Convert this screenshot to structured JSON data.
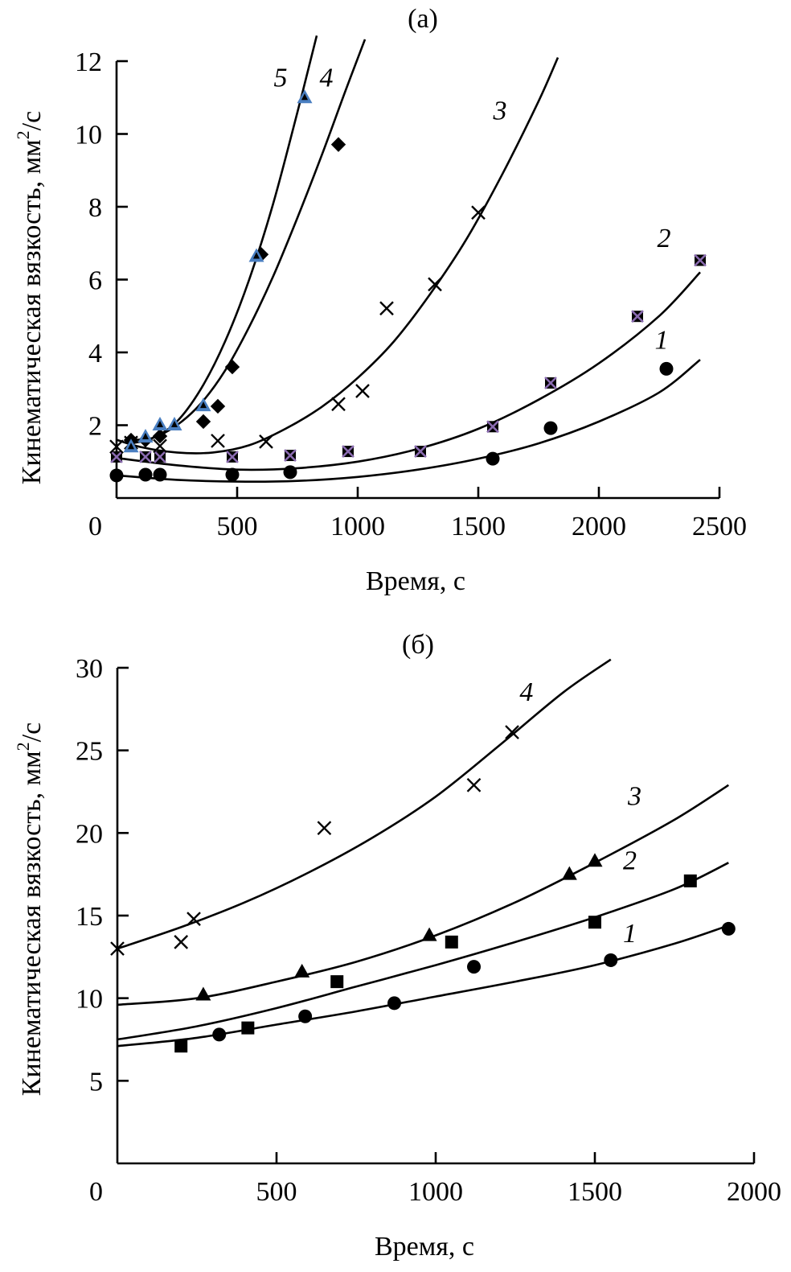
{
  "chart_data": [
    {
      "type": "scatter",
      "panel_label": "(a)",
      "title": "(a)",
      "xlabel": "Время, с",
      "ylabel": "Кинематическая вязкость, мм²/с",
      "ylabel_main": "Кинематическая вязкость, мм",
      "ylabel_sup": "2",
      "ylabel_tail": "/с",
      "xlim": [
        0,
        2500
      ],
      "ylim": [
        0,
        12
      ],
      "xticks": [
        0,
        500,
        1000,
        1500,
        2000,
        2500
      ],
      "xtick_labels": [
        "0",
        "500",
        "1000",
        "1500",
        "2000",
        "2500"
      ],
      "yticks": [
        0,
        2,
        4,
        6,
        8,
        10,
        12
      ],
      "ytick_labels": [
        "0",
        "2",
        "4",
        "6",
        "8",
        "10",
        "12"
      ],
      "grid": false,
      "legend": "none (curves labelled inline)",
      "series": [
        {
          "name": "1",
          "marker": "circle",
          "color": "#000000",
          "points": [
            [
              0,
              0.62
            ],
            [
              120,
              0.64
            ],
            [
              180,
              0.64
            ],
            [
              480,
              0.64
            ],
            [
              720,
              0.71
            ],
            [
              1560,
              1.08
            ],
            [
              1800,
              1.92
            ],
            [
              2280,
              3.55
            ]
          ],
          "fit": [
            [
              0,
              0.62
            ],
            [
              250,
              0.5
            ],
            [
              500,
              0.45
            ],
            [
              750,
              0.47
            ],
            [
              1000,
              0.58
            ],
            [
              1250,
              0.78
            ],
            [
              1500,
              1.08
            ],
            [
              1750,
              1.5
            ],
            [
              2000,
              2.1
            ],
            [
              2250,
              2.9
            ],
            [
              2420,
              3.8
            ]
          ],
          "label_at": [
            2260,
            4.1
          ]
        },
        {
          "name": "2",
          "marker": "square-x",
          "color": "#000000",
          "accent": "#8a6bb0",
          "points": [
            [
              0,
              1.13
            ],
            [
              120,
              1.13
            ],
            [
              180,
              1.13
            ],
            [
              480,
              1.13
            ],
            [
              720,
              1.17
            ],
            [
              960,
              1.28
            ],
            [
              1260,
              1.28
            ],
            [
              1560,
              1.96
            ],
            [
              1800,
              3.16
            ],
            [
              2160,
              4.99
            ],
            [
              2420,
              6.53
            ]
          ],
          "fit": [
            [
              0,
              1.1
            ],
            [
              250,
              0.9
            ],
            [
              500,
              0.78
            ],
            [
              750,
              0.82
            ],
            [
              1000,
              1.0
            ],
            [
              1250,
              1.35
            ],
            [
              1500,
              1.9
            ],
            [
              1750,
              2.7
            ],
            [
              2000,
              3.7
            ],
            [
              2250,
              5.0
            ],
            [
              2420,
              6.2
            ]
          ],
          "label_at": [
            2270,
            6.9
          ]
        },
        {
          "name": "3",
          "marker": "x",
          "color": "#000000",
          "points": [
            [
              0,
              1.41
            ],
            [
              60,
              1.52
            ],
            [
              180,
              1.43
            ],
            [
              420,
              1.57
            ],
            [
              620,
              1.55
            ],
            [
              920,
              2.58
            ],
            [
              1020,
              2.94
            ],
            [
              1120,
              5.21
            ],
            [
              1320,
              5.87
            ],
            [
              1500,
              7.84
            ]
          ],
          "fit": [
            [
              0,
              1.6
            ],
            [
              100,
              1.4
            ],
            [
              250,
              1.25
            ],
            [
              400,
              1.25
            ],
            [
              550,
              1.45
            ],
            [
              700,
              1.9
            ],
            [
              850,
              2.5
            ],
            [
              1000,
              3.3
            ],
            [
              1150,
              4.3
            ],
            [
              1300,
              5.6
            ],
            [
              1450,
              7.1
            ],
            [
              1600,
              8.9
            ],
            [
              1750,
              10.9
            ],
            [
              1830,
              12.1
            ]
          ],
          "label_at": [
            1590,
            10.4
          ]
        },
        {
          "name": "4",
          "marker": "diamond",
          "color": "#000000",
          "points": [
            [
              60,
              1.59
            ],
            [
              120,
              1.59
            ],
            [
              180,
              1.7
            ],
            [
              360,
              2.1
            ],
            [
              420,
              2.52
            ],
            [
              480,
              3.6
            ],
            [
              600,
              6.69
            ],
            [
              920,
              9.71
            ]
          ],
          "fit": [
            [
              60,
              1.6
            ],
            [
              150,
              1.65
            ],
            [
              250,
              2.0
            ],
            [
              350,
              2.6
            ],
            [
              450,
              3.5
            ],
            [
              550,
              4.7
            ],
            [
              650,
              6.1
            ],
            [
              750,
              7.7
            ],
            [
              850,
              9.4
            ],
            [
              950,
              11.2
            ],
            [
              1030,
              12.6
            ]
          ],
          "label_at": [
            870,
            11.3
          ]
        },
        {
          "name": "5",
          "marker": "triangle",
          "color": "#000000",
          "fill": "#4a7fc1",
          "points": [
            [
              60,
              1.41
            ],
            [
              120,
              1.68
            ],
            [
              180,
              2.01
            ],
            [
              240,
              2.01
            ],
            [
              360,
              2.54
            ],
            [
              580,
              6.64
            ],
            [
              780,
              11.0
            ]
          ],
          "fit": [
            [
              60,
              1.5
            ],
            [
              150,
              1.65
            ],
            [
              250,
              2.1
            ],
            [
              350,
              3.0
            ],
            [
              450,
              4.3
            ],
            [
              550,
              6.0
            ],
            [
              650,
              8.1
            ],
            [
              750,
              10.6
            ],
            [
              830,
              12.7
            ]
          ],
          "label_at": [
            680,
            11.3
          ]
        }
      ]
    },
    {
      "type": "scatter",
      "panel_label": "(б)",
      "title": "(б)",
      "xlabel": "Время, с",
      "ylabel": "Кинематическая вязкость, мм²/с",
      "ylabel_main": "Кинематическая вязкость, мм",
      "ylabel_sup": "2",
      "ylabel_tail": "/с",
      "xlim": [
        0,
        2000
      ],
      "ylim": [
        0,
        30
      ],
      "xticks": [
        0,
        500,
        1000,
        1500,
        2000
      ],
      "xtick_labels": [
        "0",
        "500",
        "1000",
        "1500",
        "2000"
      ],
      "yticks": [
        5,
        10,
        15,
        20,
        25,
        30
      ],
      "ytick_labels": [
        "5",
        "10",
        "15",
        "20",
        "25",
        "30"
      ],
      "y0_label": "0",
      "grid": false,
      "legend": "none (curves labelled inline)",
      "series": [
        {
          "name": "1",
          "marker": "circle",
          "color": "#000000",
          "points": [
            [
              320,
              7.8
            ],
            [
              590,
              8.9
            ],
            [
              870,
              9.7
            ],
            [
              1120,
              11.9
            ],
            [
              1550,
              12.3
            ],
            [
              1920,
              14.2
            ]
          ],
          "fit": [
            [
              0,
              7.1
            ],
            [
              250,
              7.6
            ],
            [
              500,
              8.4
            ],
            [
              750,
              9.2
            ],
            [
              1000,
              10.1
            ],
            [
              1250,
              11.0
            ],
            [
              1500,
              12.0
            ],
            [
              1750,
              13.3
            ],
            [
              1920,
              14.4
            ]
          ],
          "label_at": [
            1610,
            13.4
          ]
        },
        {
          "name": "2",
          "marker": "square",
          "color": "#000000",
          "points": [
            [
              200,
              7.1
            ],
            [
              410,
              8.2
            ],
            [
              690,
              11.0
            ],
            [
              1050,
              13.4
            ],
            [
              1500,
              14.6
            ],
            [
              1800,
              17.1
            ]
          ],
          "fit": [
            [
              0,
              7.5
            ],
            [
              250,
              8.3
            ],
            [
              500,
              9.4
            ],
            [
              750,
              10.7
            ],
            [
              1000,
              12.0
            ],
            [
              1250,
              13.4
            ],
            [
              1500,
              14.9
            ],
            [
              1750,
              16.6
            ],
            [
              1920,
              18.2
            ]
          ],
          "label_at": [
            1610,
            17.8
          ]
        },
        {
          "name": "3",
          "marker": "triangle",
          "color": "#000000",
          "points": [
            [
              270,
              10.2
            ],
            [
              580,
              11.6
            ],
            [
              980,
              13.8
            ],
            [
              1420,
              17.5
            ],
            [
              1500,
              18.3
            ]
          ],
          "fit": [
            [
              0,
              9.6
            ],
            [
              250,
              10.0
            ],
            [
              500,
              11.0
            ],
            [
              750,
              12.2
            ],
            [
              1000,
              13.8
            ],
            [
              1250,
              15.8
            ],
            [
              1500,
              18.2
            ],
            [
              1750,
              20.8
            ],
            [
              1920,
              22.9
            ]
          ],
          "label_at": [
            1625,
            21.7
          ]
        },
        {
          "name": "4",
          "marker": "x",
          "color": "#000000",
          "points": [
            [
              0,
              13.0
            ],
            [
              200,
              13.4
            ],
            [
              240,
              14.8
            ],
            [
              650,
              20.3
            ],
            [
              1120,
              22.9
            ],
            [
              1240,
              26.1
            ]
          ],
          "fit": [
            [
              0,
              13.0
            ],
            [
              200,
              14.3
            ],
            [
              400,
              15.8
            ],
            [
              600,
              17.6
            ],
            [
              800,
              19.7
            ],
            [
              1000,
              22.2
            ],
            [
              1200,
              25.3
            ],
            [
              1400,
              28.5
            ],
            [
              1550,
              30.5
            ]
          ],
          "label_at": [
            1285,
            28.0
          ]
        }
      ]
    }
  ]
}
